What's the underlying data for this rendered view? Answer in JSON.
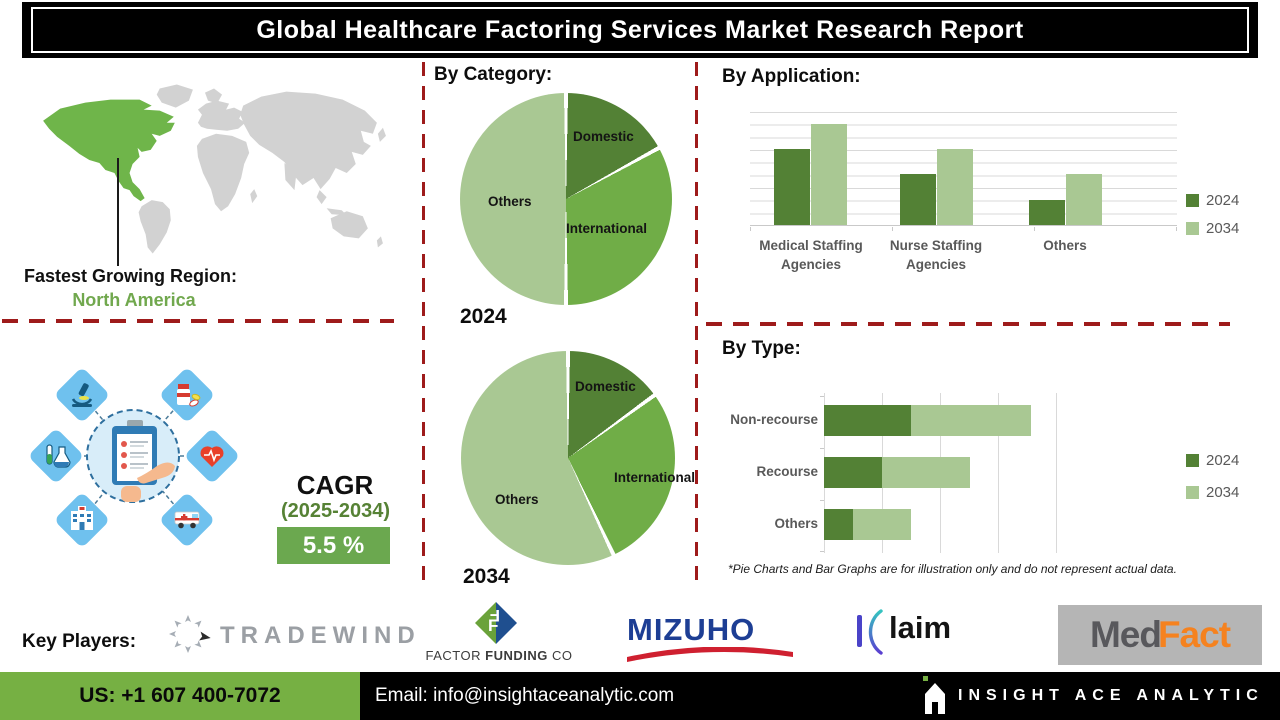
{
  "header": {
    "title": "Global Healthcare Factoring Services Market Research Report"
  },
  "region": {
    "label": "Fastest Growing Region:",
    "value": "North America"
  },
  "cagr": {
    "label": "CAGR",
    "period": "(2025-2034)",
    "value": "5.5 %"
  },
  "sections": {
    "category": "By Category:",
    "application": "By Application:",
    "type": "By Type:"
  },
  "footnote": "*Pie Charts and Bar Graphs are for illustration only and do not represent actual data.",
  "key_players": {
    "label": "Key Players:",
    "tradewind": "TRADEWIND",
    "factor_funding": {
      "factor": "FACTOR",
      "funding": "FUNDING",
      "co": "CO"
    },
    "mizuho": "MIZUHO",
    "klaim": "laim",
    "medfact": {
      "med": "Med",
      "fact": "Fact"
    }
  },
  "footer": {
    "phone": "US: +1 607 400-7072",
    "email": "Email: info@insightaceanalytic.com",
    "brand": "INSIGHT ACE ANALYTIC"
  },
  "colors": {
    "green_dark": "#538135",
    "green_mid": "#70ad47",
    "green_light": "#a9c893",
    "map_green": "#6fb54a",
    "footer_green": "#76b043",
    "dash_red": "#9e1b1b",
    "cagr_box_green": "#6ba84f"
  },
  "chart_data": [
    {
      "type": "pie",
      "title": "By Category:",
      "caption": "2024",
      "labels": [
        "Domestic",
        "International",
        "Others"
      ],
      "values": [
        17,
        33,
        50
      ],
      "colors": [
        "#538135",
        "#70ad47",
        "#a9c893"
      ],
      "note": "illustrative only"
    },
    {
      "type": "pie",
      "title": "By Category:",
      "caption": "2034",
      "labels": [
        "Domestic",
        "International",
        "Others"
      ],
      "values": [
        15,
        28,
        57
      ],
      "colors": [
        "#538135",
        "#70ad47",
        "#a9c893"
      ],
      "note": "illustrative only"
    },
    {
      "type": "bar",
      "title": "By Application:",
      "categories": [
        "Medical Staffing Agencies",
        "Nurse Staffing Agencies",
        "Others"
      ],
      "series": [
        {
          "name": "2024",
          "color": "#538135",
          "values": [
            6,
            4,
            2
          ]
        },
        {
          "name": "2034",
          "color": "#a9c893",
          "values": [
            8,
            6,
            4
          ]
        }
      ],
      "ylim": [
        0,
        9
      ],
      "grid": true,
      "legend_position": "right",
      "note": "illustrative only"
    },
    {
      "type": "bar",
      "orientation": "horizontal",
      "stacked": true,
      "title": "By Type:",
      "categories": [
        "Non-recourse",
        "Recourse",
        "Others"
      ],
      "series": [
        {
          "name": "2024",
          "color": "#538135",
          "values": [
            1.5,
            1.0,
            0.5
          ]
        },
        {
          "name": "2034",
          "color": "#a9c893",
          "values": [
            2.05,
            1.5,
            1.0
          ]
        }
      ],
      "xlim": [
        0,
        4
      ],
      "grid": true,
      "legend_position": "right",
      "note": "illustrative only"
    }
  ]
}
